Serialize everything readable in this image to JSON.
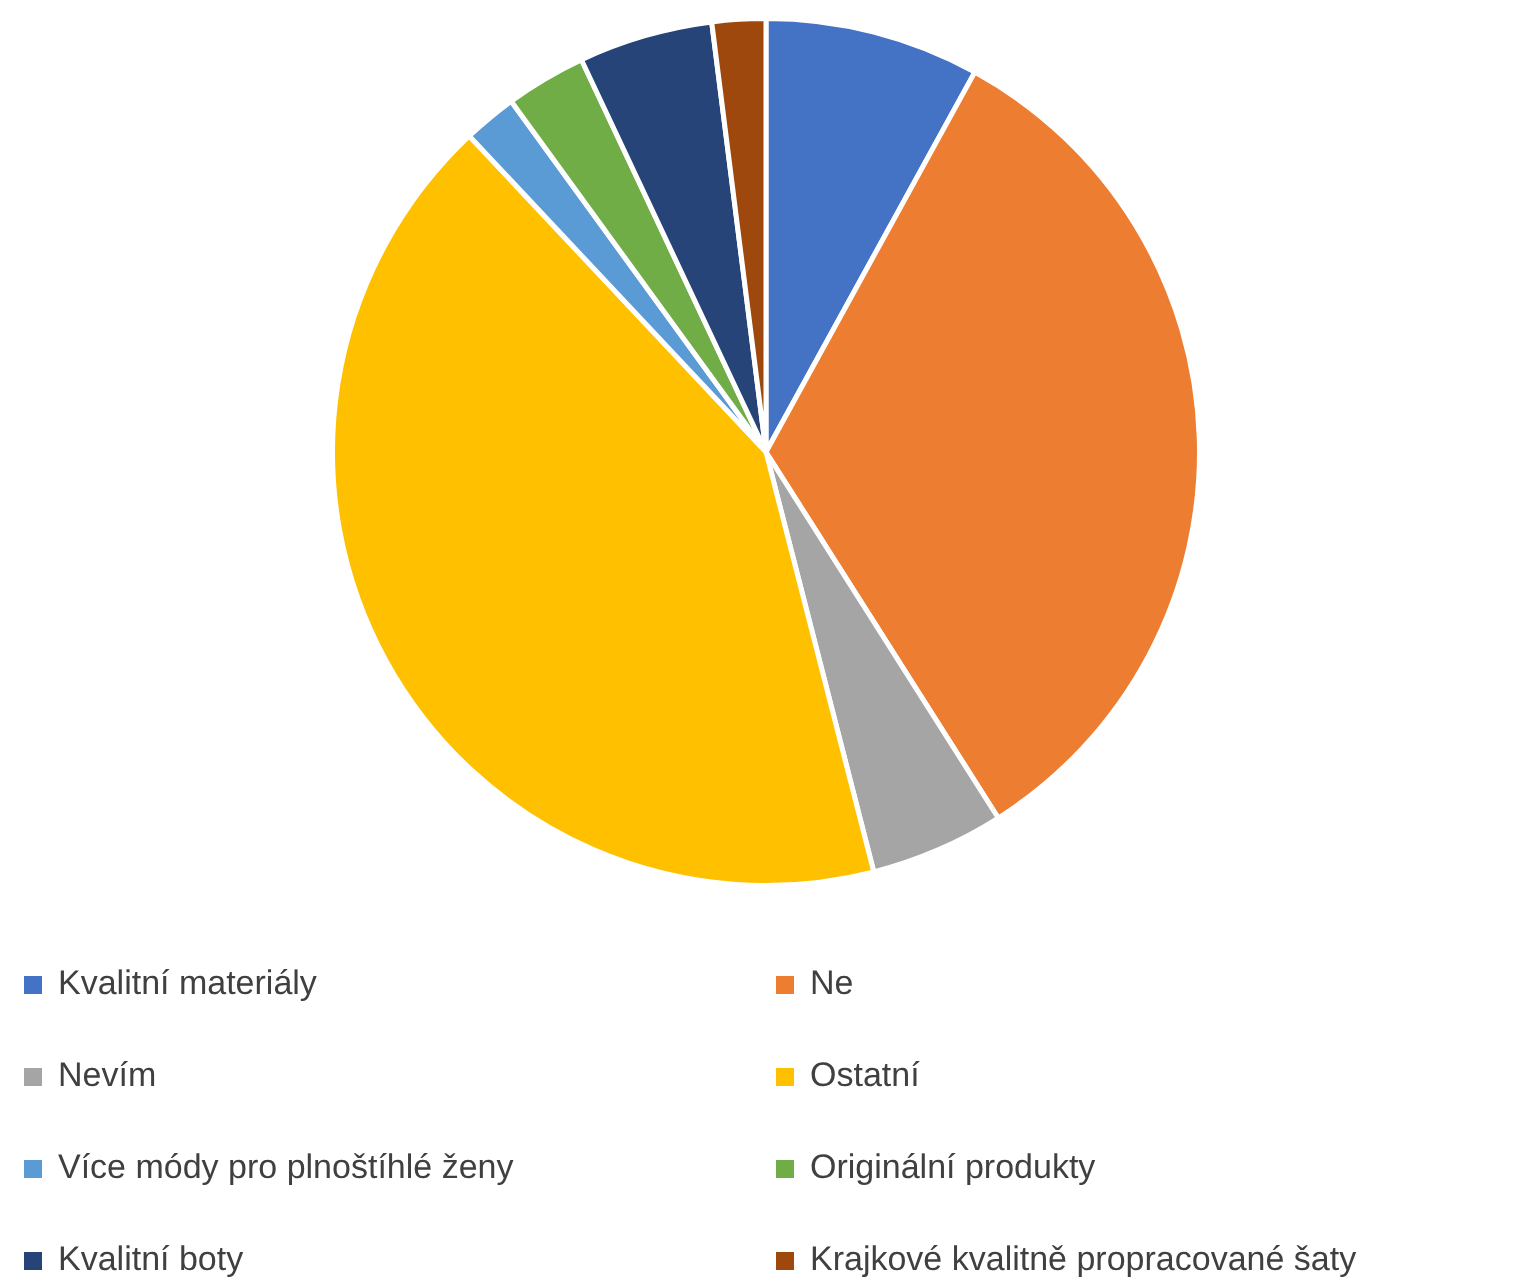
{
  "chart_data": {
    "type": "pie",
    "categories": [
      "Kvalitní materiály",
      "Ne",
      "Nevím",
      "Ostatní",
      "Více módy pro plnoštíhlé ženy",
      "Originální produkty",
      "Kvalitní boty",
      "Krajkové kvalitně propracované šaty"
    ],
    "values": [
      8,
      33,
      5,
      42,
      2,
      3,
      5,
      2
    ],
    "colors": [
      "#4472c4",
      "#ed7d31",
      "#a5a5a5",
      "#ffc000",
      "#5b9bd5",
      "#70ad47",
      "#264478",
      "#9e480e"
    ],
    "legend": "bottom"
  }
}
